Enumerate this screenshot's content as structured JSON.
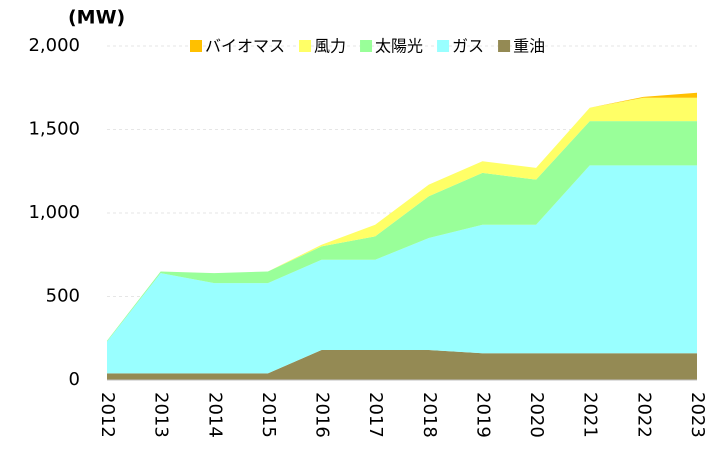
{
  "chart_data": {
    "type": "stacked_area",
    "y_label": "(MW)",
    "categories": [
      "2012",
      "2013",
      "2014",
      "2015",
      "2016",
      "2017",
      "2018",
      "2019",
      "2020",
      "2021",
      "2022",
      "2023"
    ],
    "series": [
      {
        "name": "重油",
        "color": "#948a54",
        "values": [
          40,
          40,
          40,
          40,
          180,
          180,
          180,
          160,
          160,
          160,
          160,
          160
        ]
      },
      {
        "name": "ガス",
        "color": "#99ffff",
        "values": [
          190,
          600,
          540,
          540,
          540,
          540,
          670,
          770,
          770,
          1125,
          1125,
          1125
        ]
      },
      {
        "name": "太陽光",
        "color": "#99ff99",
        "values": [
          5,
          10,
          60,
          70,
          80,
          140,
          250,
          310,
          270,
          265,
          265,
          265
        ]
      },
      {
        "name": "風力",
        "color": "#ffff66",
        "values": [
          0,
          0,
          0,
          0,
          10,
          70,
          70,
          70,
          70,
          80,
          140,
          140
        ]
      },
      {
        "name": "バイオマス",
        "color": "#ffc000",
        "values": [
          0,
          0,
          0,
          0,
          0,
          0,
          0,
          0,
          0,
          0,
          5,
          30
        ]
      }
    ],
    "ylim": [
      0,
      2000
    ],
    "yticks": [
      0,
      500,
      {
        "value": 1000,
        "label": "1,000"
      },
      {
        "value": 1500,
        "label": "1,500"
      },
      {
        "value": 2000,
        "label": "2,000"
      }
    ],
    "grid": true,
    "legend": "top"
  }
}
